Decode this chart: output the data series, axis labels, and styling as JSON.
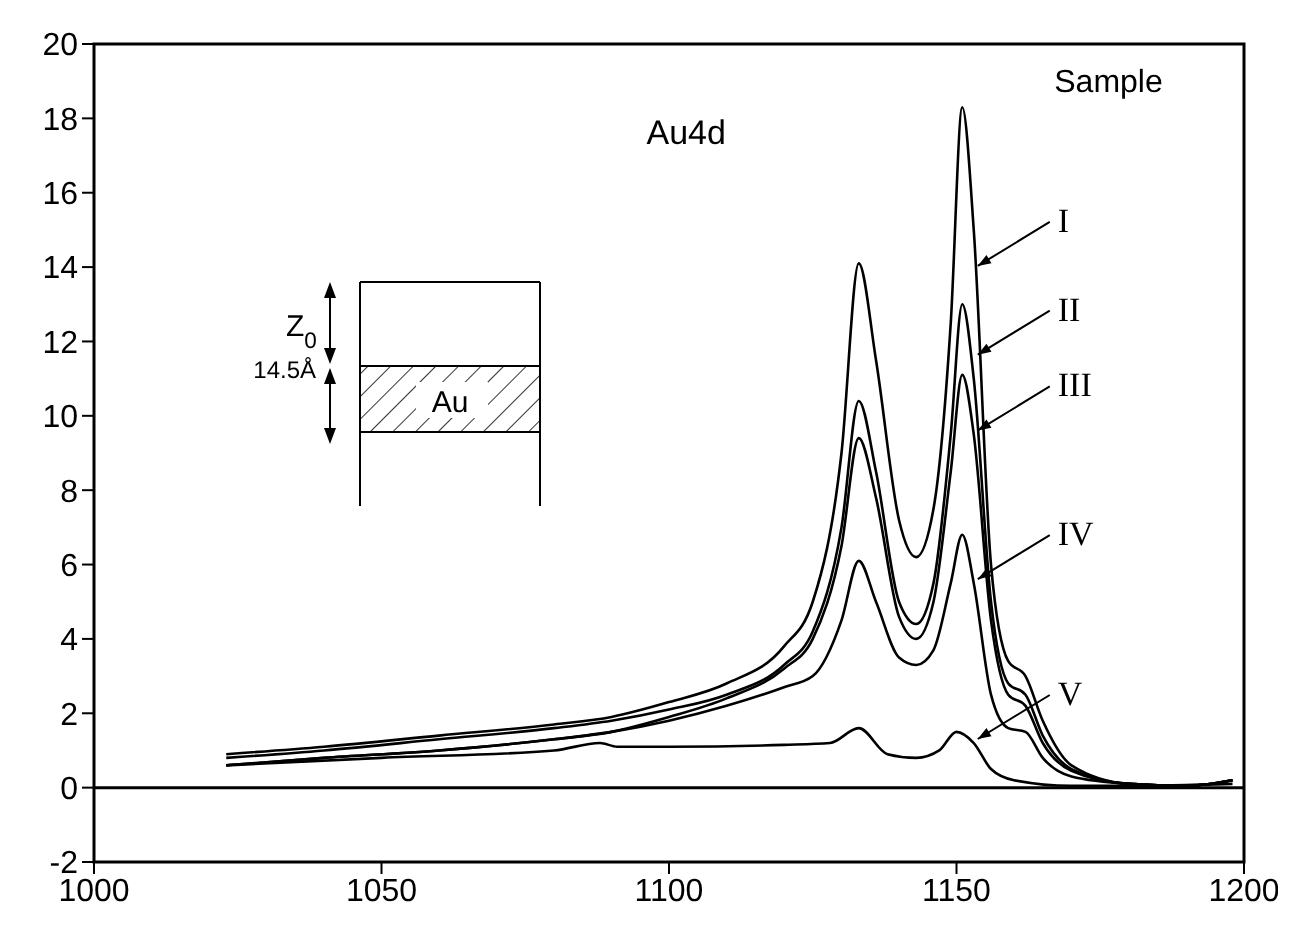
{
  "chart_data": {
    "type": "line",
    "annotations": [
      "Au4d",
      "Z$_{0}$",
      "14.5Å",
      "Au"
    ],
    "legend_title": "Sample",
    "x": [
      1023,
      1040,
      1060,
      1080,
      1090,
      1100,
      1110,
      1120,
      1125,
      1130,
      1133,
      1136,
      1140,
      1143,
      1146,
      1149,
      1151,
      1153,
      1156,
      1159,
      1162,
      1165,
      1170,
      1180,
      1190,
      1198
    ],
    "series": [
      {
        "name": "I",
        "color": "#000000",
        "values": [
          0.9,
          1.1,
          1.4,
          1.7,
          1.9,
          2.3,
          2.8,
          3.8,
          5.0,
          9.0,
          14.1,
          11.5,
          7.2,
          6.2,
          7.5,
          12.5,
          18.3,
          15.0,
          6.0,
          3.4,
          3.0,
          1.8,
          0.6,
          0.1,
          0.05,
          0.2
        ]
      },
      {
        "name": "II",
        "color": "#000000",
        "values": [
          0.8,
          1.0,
          1.3,
          1.6,
          1.8,
          2.1,
          2.5,
          3.3,
          4.2,
          7.0,
          10.4,
          8.5,
          5.0,
          4.4,
          5.5,
          9.5,
          13.0,
          11.0,
          5.0,
          2.8,
          2.5,
          1.4,
          0.5,
          0.1,
          0.05,
          0.2
        ]
      },
      {
        "name": "III",
        "color": "#000000",
        "values": [
          0.6,
          0.8,
          1.0,
          1.3,
          1.5,
          1.9,
          2.4,
          3.2,
          4.0,
          6.5,
          9.4,
          7.8,
          4.6,
          4.0,
          5.0,
          8.5,
          11.1,
          9.5,
          4.5,
          2.5,
          2.2,
          1.2,
          0.45,
          0.1,
          0.05,
          0.2
        ]
      },
      {
        "name": "IV",
        "color": "#000000",
        "values": [
          0.6,
          0.8,
          1.0,
          1.3,
          1.5,
          1.8,
          2.2,
          2.7,
          3.0,
          4.5,
          6.1,
          5.0,
          3.5,
          3.3,
          3.7,
          5.5,
          6.8,
          5.5,
          2.5,
          1.6,
          1.5,
          0.8,
          0.3,
          0.1,
          0.05,
          0.2
        ]
      },
      {
        "name": "V",
        "color": "#000000",
        "x": [
          1023,
          1050,
          1080,
          1088,
          1091,
          1100,
          1120,
          1128,
          1133,
          1138,
          1143,
          1147,
          1150,
          1153,
          1156,
          1160,
          1170,
          1180,
          1198
        ],
        "values": [
          0.6,
          0.8,
          1.0,
          1.2,
          1.1,
          1.1,
          1.15,
          1.2,
          1.6,
          0.9,
          0.8,
          1.0,
          1.5,
          1.2,
          0.5,
          0.2,
          0.05,
          0.05,
          0.1
        ]
      }
    ],
    "xlim": [
      1000,
      1200
    ],
    "xticks": [
      1000,
      1050,
      1100,
      1150,
      1200
    ],
    "ylim": [
      -2,
      20
    ],
    "yticks": [
      -2,
      0,
      2,
      4,
      6,
      8,
      10,
      12,
      14,
      16,
      18,
      20
    ],
    "ref_lines": [
      {
        "axis": "y",
        "value": 0,
        "color": "#000000"
      }
    ],
    "grid": false,
    "legend": "right",
    "marker": "none",
    "line_style": "solid"
  }
}
